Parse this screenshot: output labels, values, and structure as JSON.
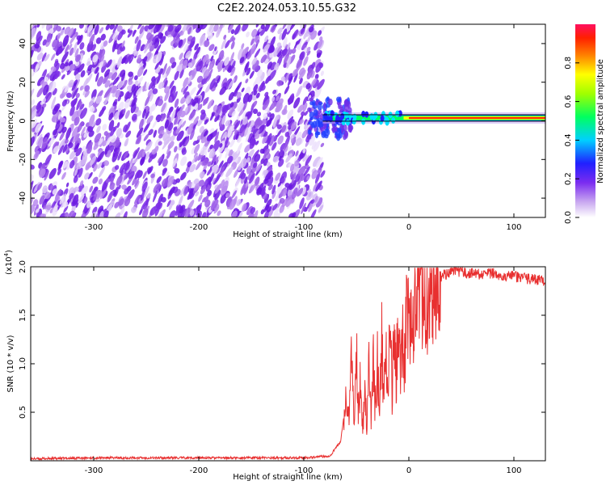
{
  "title": "C2E2.2024.053.10.55.G32",
  "chart_data": [
    {
      "type": "heatmap",
      "xlabel": "Height of straight line (km)",
      "ylabel": "Frequency (Hz)",
      "xlim": [
        -360,
        130
      ],
      "ylim": [
        -50,
        50
      ],
      "xticks": [
        -300,
        -200,
        -100,
        0,
        100
      ],
      "yticks": [
        -40,
        -20,
        0,
        20,
        40
      ],
      "noise_region_x": [
        -360,
        -82
      ],
      "signal_frequency_hz": 1.5,
      "colorbar": {
        "label": "Normalized spectral amplitude",
        "range": [
          0.0,
          1.0
        ],
        "ticks": [
          0.0,
          0.2,
          0.4,
          0.6,
          0.8
        ]
      }
    },
    {
      "type": "line",
      "xlabel": "Height of straight line (km)",
      "ylabel": "SNR (10 * v/v)",
      "multiplier_label": "(x10",
      "multiplier_exp": "4",
      "multiplier_close": ")",
      "xlim": [
        -360,
        130
      ],
      "ylim": [
        0,
        2.0
      ],
      "xticks": [
        -300,
        -200,
        -100,
        0,
        100
      ],
      "yticks": [
        0.5,
        1.0,
        1.5,
        2.0
      ],
      "ytick_labels": [
        "0.5",
        "1.0",
        "1.5",
        "2.0"
      ],
      "line_color": "#e83030",
      "series": [
        {
          "x": [
            -360,
            -300,
            -200,
            -100,
            -75,
            -65,
            -60,
            -57,
            -55,
            -52,
            -50,
            -48,
            -46,
            -44,
            -42,
            -40,
            -38,
            -36,
            -34,
            -32,
            -30,
            -28,
            -26,
            -24,
            -22,
            -20,
            -18,
            -16,
            -14,
            -12,
            -10,
            -8,
            -6,
            -4,
            -2,
            0,
            5,
            10,
            15,
            20,
            25,
            30,
            40,
            50,
            60,
            70,
            80,
            90,
            100,
            110,
            120,
            130
          ],
          "values": [
            0.02,
            0.03,
            0.03,
            0.03,
            0.05,
            0.2,
            0.6,
            0.4,
            1.1,
            0.3,
            1.2,
            0.5,
            0.9,
            0.3,
            0.8,
            0.35,
            1.0,
            0.4,
            1.05,
            0.5,
            1.1,
            0.45,
            1.3,
            0.6,
            1.2,
            0.55,
            1.45,
            0.7,
            1.35,
            0.8,
            1.65,
            0.9,
            1.4,
            1.0,
            1.7,
            1.35,
            1.55,
            1.85,
            1.7,
            1.6,
            1.8,
            1.9,
            1.95,
            1.94,
            1.93,
            1.92,
            1.93,
            1.91,
            1.9,
            1.88,
            1.87,
            1.85
          ]
        }
      ]
    }
  ]
}
